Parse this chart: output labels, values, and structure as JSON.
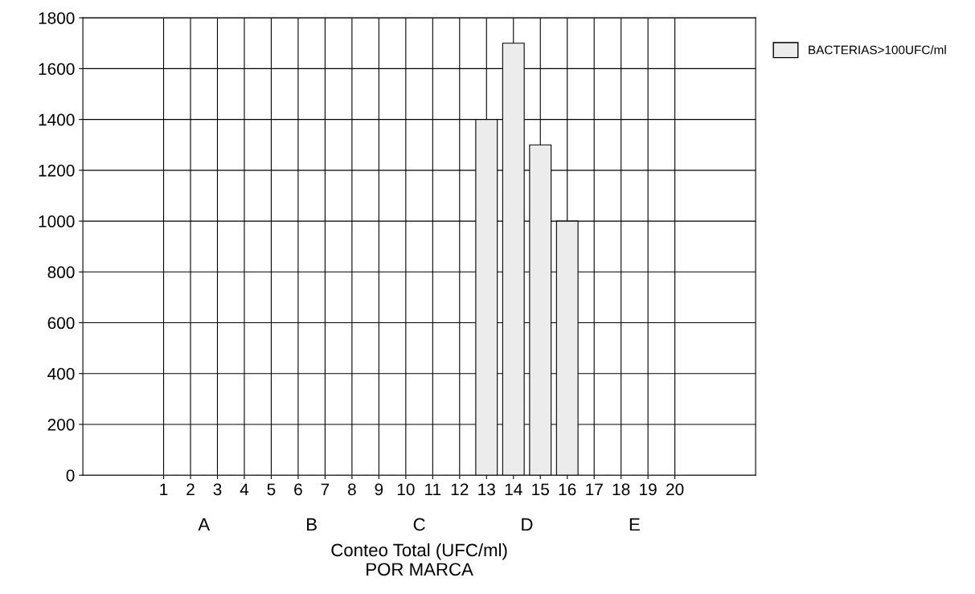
{
  "chart_data": {
    "type": "bar",
    "xlabel": "Conteo Total (UFC/ml)\nPOR MARCA",
    "categories": [
      "1",
      "2",
      "3",
      "4",
      "5",
      "6",
      "7",
      "8",
      "9",
      "10",
      "11",
      "12",
      "13",
      "14",
      "15",
      "16",
      "17",
      "18",
      "19",
      "20"
    ],
    "series": [
      {
        "name": "BACTERIAS>100UFC/ml",
        "color": "#ececec",
        "values": [
          0,
          0,
          0,
          0,
          0,
          0,
          0,
          0,
          0,
          0,
          0,
          0,
          1400,
          1700,
          1300,
          1000,
          0,
          0,
          0,
          0
        ]
      }
    ],
    "annotations": [
      "A",
      "B",
      "C",
      "D",
      "E"
    ],
    "ylim": [
      0,
      1800
    ],
    "yticks": [
      0,
      200,
      400,
      600,
      800,
      1000,
      1200,
      1400,
      1600,
      1800
    ],
    "grid": true,
    "legend": "top right"
  }
}
